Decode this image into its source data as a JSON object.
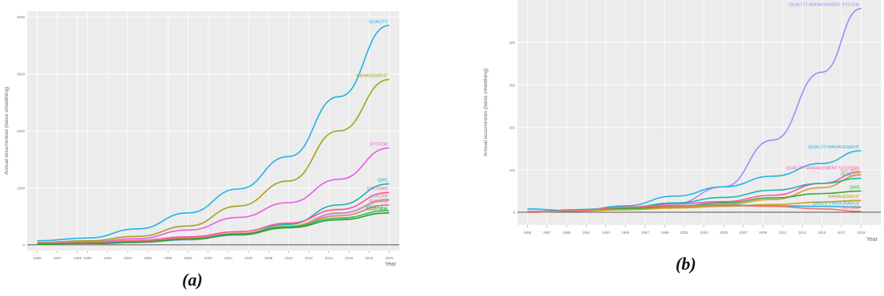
{
  "captions": {
    "a": "(a)",
    "b": "(b)"
  },
  "chart_data": [
    {
      "type": "line",
      "ylabel": "Annual occurrences (loess smoothing)",
      "xlabel": "Year",
      "xlim": [
        1984,
        2021
      ],
      "ylim": [
        -100,
        4100
      ],
      "y_ticks": [
        0,
        1000,
        2000,
        3000,
        4000
      ],
      "y_tick_labels": [
        "0",
        "1000",
        "2000",
        "3000",
        "4000"
      ],
      "x_ticks": [
        1985,
        1987,
        1989,
        1990,
        1992,
        1994,
        1996,
        1998,
        2000,
        2002,
        2004,
        2006,
        2008,
        2010,
        2012,
        2014,
        2016,
        2018,
        2020
      ],
      "x_tick_labels": [
        "1985",
        "1987",
        "1989",
        "1990",
        "1992",
        "1994",
        "1996",
        "1998",
        "2000",
        "2002",
        "2004",
        "2006",
        "2008",
        "2010",
        "2012",
        "2014",
        "2016",
        "2018",
        "2020"
      ],
      "grid": true,
      "x": [
        1985,
        1990,
        1995,
        2000,
        2005,
        2010,
        2015,
        2020
      ],
      "series": [
        {
          "name": "QUALITY",
          "color": "#1fb5e8",
          "values": [
            70,
            120,
            280,
            560,
            980,
            1550,
            2600,
            3850
          ]
        },
        {
          "name": "MANAGEMENT",
          "color": "#a3a31a",
          "values": [
            40,
            70,
            150,
            330,
            680,
            1120,
            2000,
            2900
          ]
        },
        {
          "name": "SYSTEM",
          "color": "#e85ce8",
          "values": [
            30,
            50,
            110,
            260,
            480,
            740,
            1150,
            1700
          ]
        },
        {
          "name": "QMS",
          "color": "#1ab4b4",
          "values": [
            10,
            15,
            40,
            90,
            190,
            360,
            700,
            1070
          ]
        },
        {
          "name": "SYSTEMS",
          "color": "#ff4f9a",
          "values": [
            25,
            40,
            80,
            140,
            230,
            380,
            620,
            920
          ]
        },
        {
          "name": "ISO",
          "color": "#ff9f5c",
          "values": [
            5,
            10,
            40,
            110,
            200,
            330,
            560,
            800
          ]
        },
        {
          "name": "QUALITY",
          "color": "#9f9cff",
          "values": [
            8,
            15,
            40,
            90,
            170,
            310,
            550,
            780
          ]
        },
        {
          "name": "SERVICE",
          "color": "#f07a6a",
          "values": [
            25,
            40,
            70,
            120,
            200,
            320,
            510,
            700
          ]
        },
        {
          "name": "PRODUCT",
          "color": "#2ec05a",
          "values": [
            15,
            25,
            50,
            100,
            190,
            320,
            470,
            600
          ]
        },
        {
          "name": "PERFORM",
          "color": "#25a025",
          "values": [
            10,
            20,
            50,
            100,
            180,
            300,
            440,
            560
          ]
        }
      ],
      "annotations": [
        "QUALITY",
        "MANAGEMENT",
        "SYSTEM",
        "QMS",
        "SYSTEMS",
        "ISO",
        "SERVICE",
        "PRODUCT",
        "PERFORM"
      ]
    },
    {
      "type": "line",
      "ylabel": "Annual occurrences (loess smoothing)",
      "xlabel": "Year",
      "xlim": [
        1984,
        2021
      ],
      "ylim": [
        -30,
        500
      ],
      "y_ticks": [
        0,
        100,
        200,
        300,
        400
      ],
      "y_tick_labels": [
        "0",
        "100",
        "200",
        "300",
        "400"
      ],
      "x_ticks": [
        1985,
        1987,
        1989,
        1991,
        1993,
        1995,
        1997,
        1999,
        2001,
        2003,
        2005,
        2007,
        2009,
        2011,
        2013,
        2015,
        2017,
        2019
      ],
      "x_tick_labels": [
        "1985",
        "1987",
        "1989",
        "1991",
        "1993",
        "1995",
        "1997",
        "1999",
        "2001",
        "2003",
        "2005",
        "2007",
        "2009",
        "2011",
        "2013",
        "2015",
        "2017",
        "2019"
      ],
      "grid": true,
      "x": [
        1985,
        1990,
        1995,
        2000,
        2005,
        2010,
        2015,
        2019
      ],
      "series": [
        {
          "name": "QUALITY MANAGEMENT SYSTEM",
          "color": "#9f8cf5",
          "values": [
            2,
            4,
            8,
            20,
            60,
            170,
            330,
            480
          ]
        },
        {
          "name": "QUALITY MANAGEMENT",
          "color": "#1fb5e8",
          "values": [
            8,
            3,
            15,
            38,
            60,
            85,
            115,
            145
          ]
        },
        {
          "name": "QUALITY MANAGEMENT SYSTEMS",
          "color": "#ff4fb8",
          "values": [
            0,
            5,
            12,
            20,
            25,
            40,
            68,
            95
          ]
        },
        {
          "name": "ISO 9001",
          "color": "#e09a1a",
          "values": [
            0,
            3,
            8,
            12,
            18,
            30,
            58,
            88
          ]
        },
        {
          "name": "QUALITY",
          "color": "#1bb8a0",
          "values": [
            0,
            4,
            10,
            22,
            35,
            52,
            68,
            80
          ]
        },
        {
          "name": "QMS",
          "color": "#3aa83a",
          "values": [
            0,
            3,
            8,
            14,
            22,
            34,
            44,
            50
          ]
        },
        {
          "name": "MANAGEMENT",
          "color": "#c9a21a",
          "values": [
            0,
            3,
            6,
            10,
            14,
            18,
            24,
            28
          ]
        },
        {
          "name": "QUALITY ASSURANCE",
          "color": "#24b0e0",
          "values": [
            0,
            6,
            12,
            16,
            17,
            15,
            14,
            12
          ]
        },
        {
          "name": "ISO 9000",
          "color": "#f0706a",
          "values": [
            0,
            4,
            12,
            15,
            16,
            14,
            8,
            2
          ]
        }
      ]
    }
  ]
}
